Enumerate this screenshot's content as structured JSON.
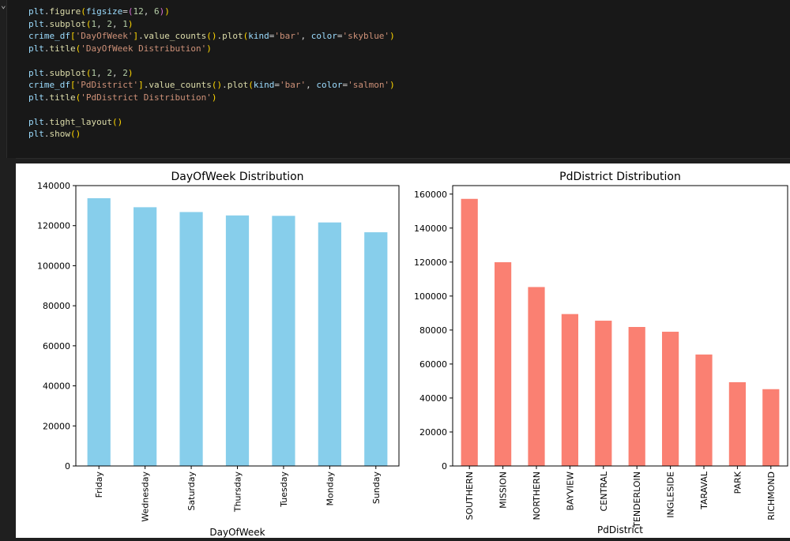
{
  "code": {
    "gutter_glyph": "⌄",
    "lines": [
      [
        [
          "plt",
          "var"
        ],
        [
          ".",
          "pn"
        ],
        [
          "figure",
          "fn"
        ],
        [
          "(",
          "br"
        ],
        [
          "figsize",
          "var"
        ],
        [
          "=",
          "pn"
        ],
        [
          "(",
          "br2"
        ],
        [
          "12",
          "num"
        ],
        [
          ", ",
          "pn"
        ],
        [
          "6",
          "num"
        ],
        [
          ")",
          "br2"
        ],
        [
          ")",
          "br"
        ]
      ],
      [
        [
          "plt",
          "var"
        ],
        [
          ".",
          "pn"
        ],
        [
          "subplot",
          "fn"
        ],
        [
          "(",
          "br"
        ],
        [
          "1",
          "num"
        ],
        [
          ", ",
          "pn"
        ],
        [
          "2",
          "num"
        ],
        [
          ", ",
          "pn"
        ],
        [
          "1",
          "num"
        ],
        [
          ")",
          "br"
        ]
      ],
      [
        [
          "crime_df",
          "var"
        ],
        [
          "[",
          "br"
        ],
        [
          "'DayOfWeek'",
          "str"
        ],
        [
          "]",
          "br"
        ],
        [
          ".",
          "pn"
        ],
        [
          "value_counts",
          "fn"
        ],
        [
          "(",
          "br"
        ],
        [
          ")",
          "br"
        ],
        [
          ".",
          "pn"
        ],
        [
          "plot",
          "fn"
        ],
        [
          "(",
          "br"
        ],
        [
          "kind",
          "var"
        ],
        [
          "=",
          "pn"
        ],
        [
          "'bar'",
          "str"
        ],
        [
          ", ",
          "pn"
        ],
        [
          "color",
          "var"
        ],
        [
          "=",
          "pn"
        ],
        [
          "'skyblue'",
          "str"
        ],
        [
          ")",
          "br"
        ]
      ],
      [
        [
          "plt",
          "var"
        ],
        [
          ".",
          "pn"
        ],
        [
          "title",
          "fn"
        ],
        [
          "(",
          "br"
        ],
        [
          "'DayOfWeek Distribution'",
          "str"
        ],
        [
          ")",
          "br"
        ]
      ],
      [],
      [
        [
          "plt",
          "var"
        ],
        [
          ".",
          "pn"
        ],
        [
          "subplot",
          "fn"
        ],
        [
          "(",
          "br"
        ],
        [
          "1",
          "num"
        ],
        [
          ", ",
          "pn"
        ],
        [
          "2",
          "num"
        ],
        [
          ", ",
          "pn"
        ],
        [
          "2",
          "num"
        ],
        [
          ")",
          "br"
        ]
      ],
      [
        [
          "crime_df",
          "var"
        ],
        [
          "[",
          "br"
        ],
        [
          "'PdDistrict'",
          "str"
        ],
        [
          "]",
          "br"
        ],
        [
          ".",
          "pn"
        ],
        [
          "value_counts",
          "fn"
        ],
        [
          "(",
          "br"
        ],
        [
          ")",
          "br"
        ],
        [
          ".",
          "pn"
        ],
        [
          "plot",
          "fn"
        ],
        [
          "(",
          "br"
        ],
        [
          "kind",
          "var"
        ],
        [
          "=",
          "pn"
        ],
        [
          "'bar'",
          "str"
        ],
        [
          ", ",
          "pn"
        ],
        [
          "color",
          "var"
        ],
        [
          "=",
          "pn"
        ],
        [
          "'salmon'",
          "str"
        ],
        [
          ")",
          "br"
        ]
      ],
      [
        [
          "plt",
          "var"
        ],
        [
          ".",
          "pn"
        ],
        [
          "title",
          "fn"
        ],
        [
          "(",
          "br"
        ],
        [
          "'PdDistrict Distribution'",
          "str"
        ],
        [
          ")",
          "br"
        ]
      ],
      [],
      [
        [
          "plt",
          "var"
        ],
        [
          ".",
          "pn"
        ],
        [
          "tight_layout",
          "fn"
        ],
        [
          "(",
          "br"
        ],
        [
          ")",
          "br"
        ]
      ],
      [
        [
          "plt",
          "var"
        ],
        [
          ".",
          "pn"
        ],
        [
          "show",
          "fn"
        ],
        [
          "(",
          "br"
        ],
        [
          ")",
          "br"
        ]
      ]
    ]
  },
  "chart_data": [
    {
      "type": "bar",
      "title": "DayOfWeek Distribution",
      "xlabel": "DayOfWeek",
      "ylabel": "",
      "color": "#87ceeb",
      "categories": [
        "Friday",
        "Wednesday",
        "Saturday",
        "Thursday",
        "Tuesday",
        "Monday",
        "Sunday"
      ],
      "values": [
        133700,
        129200,
        126800,
        125100,
        124900,
        121600,
        116700
      ],
      "ylim": [
        0,
        140000
      ],
      "yticks": [
        0,
        20000,
        40000,
        60000,
        80000,
        100000,
        120000,
        140000
      ],
      "grid": false,
      "legend": "none"
    },
    {
      "type": "bar",
      "title": "PdDistrict Distribution",
      "xlabel": "PdDistrict",
      "ylabel": "",
      "color": "#fa8072",
      "categories": [
        "SOUTHERN",
        "MISSION",
        "NORTHERN",
        "BAYVIEW",
        "CENTRAL",
        "TENDERLOIN",
        "INGLESIDE",
        "TARAVAL",
        "PARK",
        "RICHMOND"
      ],
      "values": [
        157200,
        119900,
        105300,
        89400,
        85500,
        81800,
        79000,
        65600,
        49300,
        45200
      ],
      "ylim": [
        0,
        165000
      ],
      "yticks": [
        0,
        20000,
        40000,
        60000,
        80000,
        100000,
        120000,
        140000,
        160000
      ],
      "grid": false,
      "legend": "none"
    }
  ]
}
